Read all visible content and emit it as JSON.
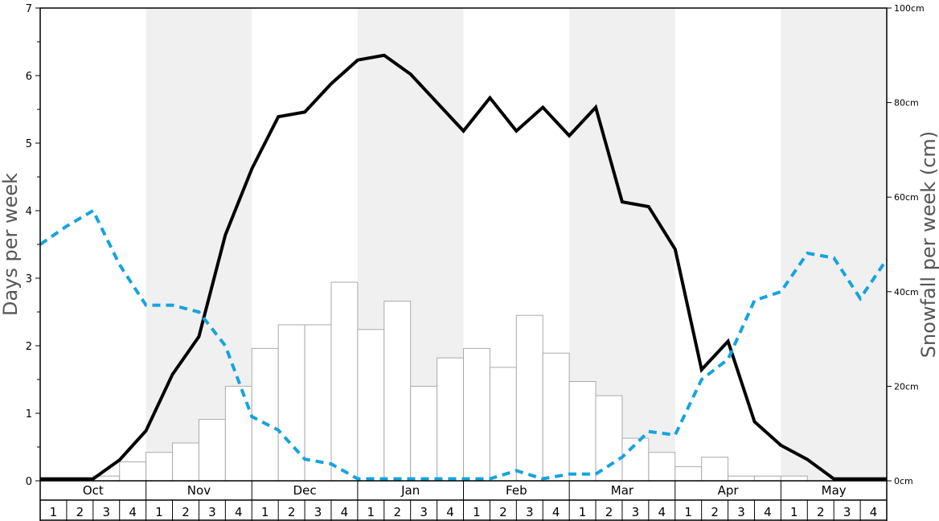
{
  "chart_data": {
    "type": "bar+line",
    "months": [
      "Oct",
      "Nov",
      "Dec",
      "Jan",
      "Feb",
      "Mar",
      "Apr",
      "May"
    ],
    "week_labels": [
      "1",
      "2",
      "3",
      "4"
    ],
    "left_axis": {
      "label": "Days per week",
      "ylim": [
        0,
        7
      ],
      "ticks": [
        0,
        1,
        2,
        3,
        4,
        5,
        6,
        7
      ]
    },
    "right_axis": {
      "label": "Snowfall per week (cm)",
      "ylim": [
        0,
        100
      ],
      "ticks": [
        "0cm",
        "20cm",
        "40cm",
        "60cm",
        "80cm",
        "100cm"
      ]
    },
    "series": [
      {
        "kind": "bar",
        "axis": "right",
        "color": "#ffffff",
        "stroke": "#aaaaaa",
        "values": [
          0,
          0,
          1,
          4,
          6,
          8,
          13,
          20,
          28,
          33,
          33,
          42,
          32,
          38,
          20,
          26,
          28,
          24,
          35,
          27,
          21,
          18,
          9,
          6,
          3,
          5,
          1,
          1,
          1,
          0,
          0,
          0
        ]
      },
      {
        "kind": "line",
        "axis": "right",
        "color": "#000000",
        "dash": "solid",
        "values": [
          0.4,
          0.4,
          0.4,
          4.4,
          10.6,
          22.5,
          30.5,
          52,
          66,
          77,
          78,
          84,
          89,
          90,
          86,
          80,
          74,
          81,
          74,
          79,
          73,
          79,
          59,
          58,
          49,
          23.5,
          29.5,
          12.5,
          7.5,
          4.5,
          0.4,
          0.4,
          0.4
        ]
      },
      {
        "kind": "line",
        "axis": "left",
        "color": "#15a3e0",
        "dash": "dashed",
        "values": [
          3.5,
          3.77,
          4.0,
          3.2,
          2.6,
          2.6,
          2.5,
          2.0,
          0.95,
          0.75,
          0.32,
          0.25,
          0.03,
          0.03,
          0.03,
          0.03,
          0.03,
          0.03,
          0.15,
          0.03,
          0.1,
          0.1,
          0.35,
          0.73,
          0.68,
          1.5,
          1.8,
          2.67,
          2.8,
          3.37,
          3.3,
          2.7,
          3.28
        ]
      }
    ],
    "background_bands": "alternating shading by month (Nov, Jan, Mar, May shaded)",
    "grid": false
  }
}
